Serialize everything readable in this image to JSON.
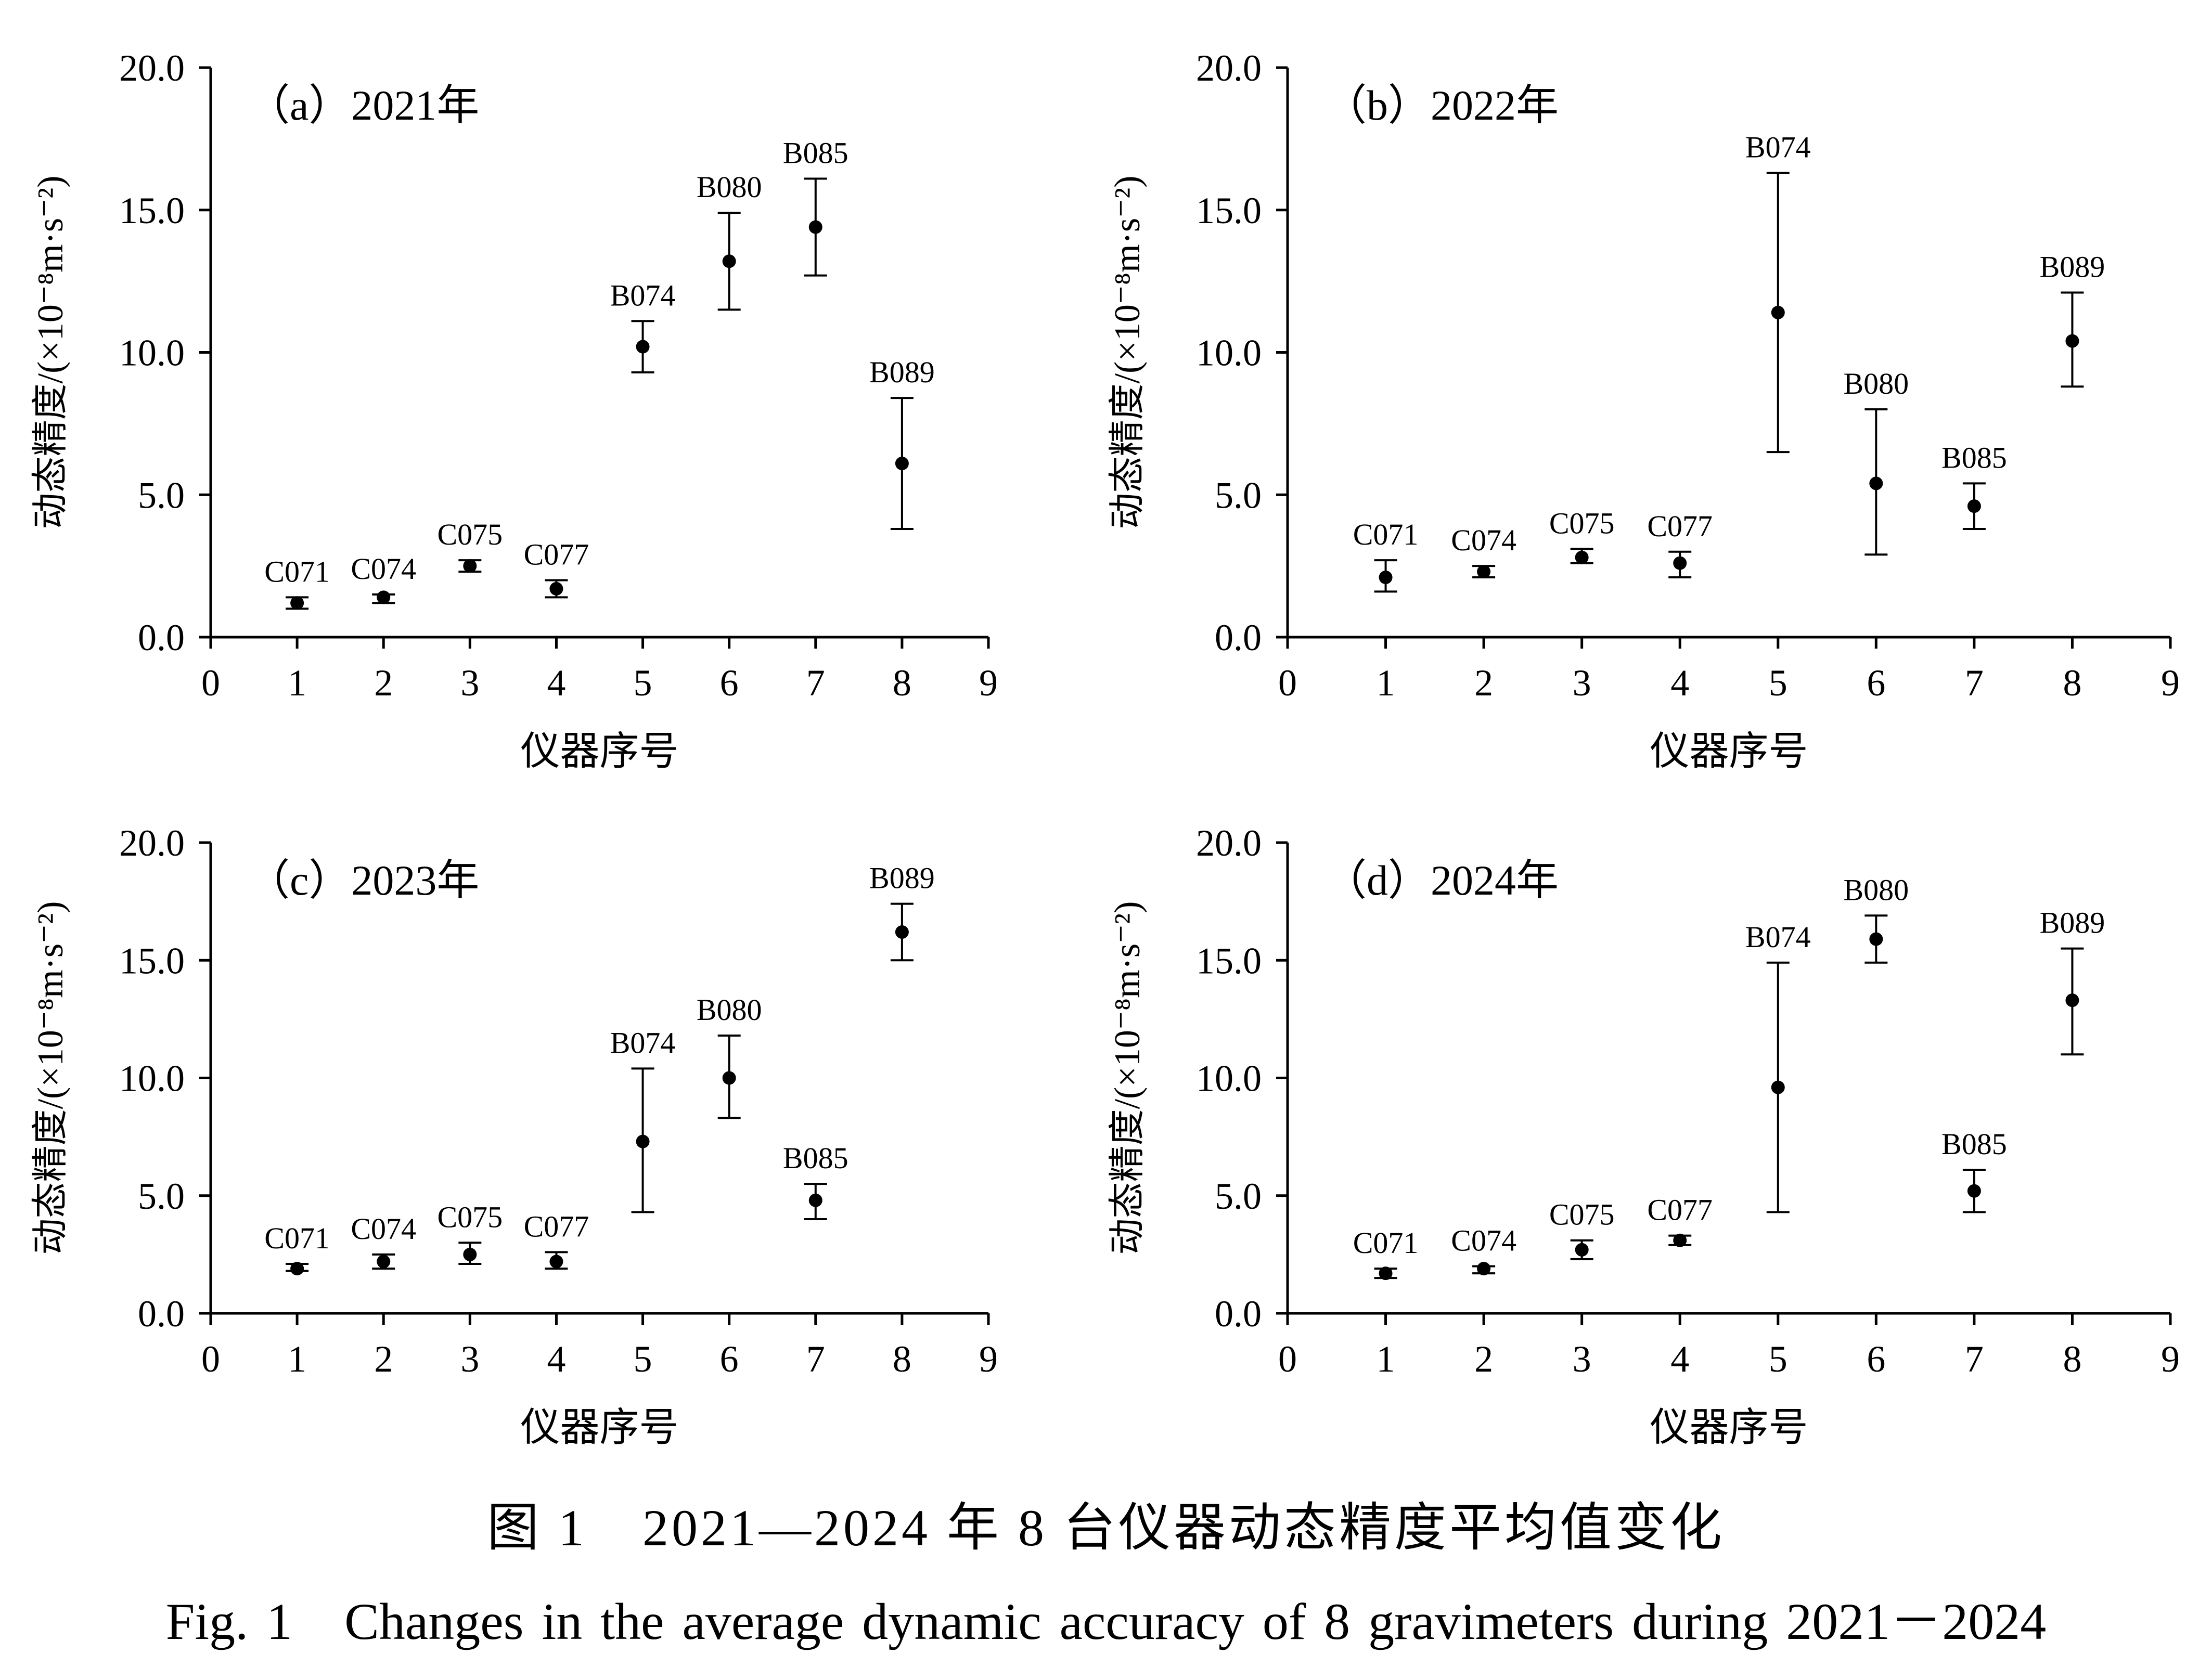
{
  "caption_cn": "图 1　2021—2024 年 8 台仪器动态精度平均值变化",
  "caption_en": "Fig. 1　Changes in the average dynamic accuracy of 8 gravimeters during 2021－2024",
  "chart_data": [
    {
      "type": "scatter",
      "panel_label": "（a）2021年",
      "xlabel": "仪器序号",
      "ylabel": "动态精度/(×10⁻⁸m·s⁻²)",
      "xlim": [
        0,
        9
      ],
      "ylim": [
        0,
        20
      ],
      "xticks": [
        0,
        1,
        2,
        3,
        4,
        5,
        6,
        7,
        8,
        9
      ],
      "yticks": [
        "0.0",
        "5.0",
        "10.0",
        "15.0",
        "20.0"
      ],
      "grid": false,
      "points": [
        {
          "x": 1,
          "y": 1.2,
          "low": 1.0,
          "high": 1.4,
          "label": "C071"
        },
        {
          "x": 2,
          "y": 1.4,
          "low": 1.2,
          "high": 1.5,
          "label": "C074"
        },
        {
          "x": 3,
          "y": 2.5,
          "low": 2.3,
          "high": 2.7,
          "label": "C075"
        },
        {
          "x": 4,
          "y": 1.7,
          "low": 1.4,
          "high": 2.0,
          "label": "C077"
        },
        {
          "x": 5,
          "y": 10.2,
          "low": 9.3,
          "high": 11.1,
          "label": "B074"
        },
        {
          "x": 6,
          "y": 13.2,
          "low": 11.5,
          "high": 14.9,
          "label": "B080"
        },
        {
          "x": 7,
          "y": 14.4,
          "low": 12.7,
          "high": 16.1,
          "label": "B085"
        },
        {
          "x": 8,
          "y": 6.1,
          "low": 3.8,
          "high": 8.4,
          "label": "B089"
        }
      ]
    },
    {
      "type": "scatter",
      "panel_label": "（b）2022年",
      "xlabel": "仪器序号",
      "ylabel": "动态精度/(×10⁻⁸m·s⁻²)",
      "xlim": [
        0,
        9
      ],
      "ylim": [
        0,
        20
      ],
      "xticks": [
        0,
        1,
        2,
        3,
        4,
        5,
        6,
        7,
        8,
        9
      ],
      "yticks": [
        "0.0",
        "5.0",
        "10.0",
        "15.0",
        "20.0"
      ],
      "grid": false,
      "points": [
        {
          "x": 1,
          "y": 2.1,
          "low": 1.6,
          "high": 2.7,
          "label": "C071"
        },
        {
          "x": 2,
          "y": 2.3,
          "low": 2.1,
          "high": 2.5,
          "label": "C074"
        },
        {
          "x": 3,
          "y": 2.8,
          "low": 2.6,
          "high": 3.1,
          "label": "C075"
        },
        {
          "x": 4,
          "y": 2.6,
          "low": 2.1,
          "high": 3.0,
          "label": "C077"
        },
        {
          "x": 5,
          "y": 11.4,
          "low": 6.5,
          "high": 16.3,
          "label": "B074"
        },
        {
          "x": 6,
          "y": 5.4,
          "low": 2.9,
          "high": 8.0,
          "label": "B080"
        },
        {
          "x": 7,
          "y": 4.6,
          "low": 3.8,
          "high": 5.4,
          "label": "B085"
        },
        {
          "x": 8,
          "y": 10.4,
          "low": 8.8,
          "high": 12.1,
          "label": "B089"
        }
      ]
    },
    {
      "type": "scatter",
      "panel_label": "（c）2023年",
      "xlabel": "仪器序号",
      "ylabel": "动态精度/(×10⁻⁸m·s⁻²)",
      "xlim": [
        0,
        9
      ],
      "ylim": [
        0,
        20
      ],
      "xticks": [
        0,
        1,
        2,
        3,
        4,
        5,
        6,
        7,
        8,
        9
      ],
      "yticks": [
        "0.0",
        "5.0",
        "10.0",
        "15.0",
        "20.0"
      ],
      "grid": false,
      "points": [
        {
          "x": 1,
          "y": 1.9,
          "low": 1.8,
          "high": 2.1,
          "label": "C071"
        },
        {
          "x": 2,
          "y": 2.2,
          "low": 1.9,
          "high": 2.5,
          "label": "C074"
        },
        {
          "x": 3,
          "y": 2.5,
          "low": 2.1,
          "high": 3.0,
          "label": "C075"
        },
        {
          "x": 4,
          "y": 2.2,
          "low": 1.9,
          "high": 2.6,
          "label": "C077"
        },
        {
          "x": 5,
          "y": 7.3,
          "low": 4.3,
          "high": 10.4,
          "label": "B074"
        },
        {
          "x": 6,
          "y": 10.0,
          "low": 8.3,
          "high": 11.8,
          "label": "B080"
        },
        {
          "x": 7,
          "y": 4.8,
          "low": 4.0,
          "high": 5.5,
          "label": "B085"
        },
        {
          "x": 8,
          "y": 16.2,
          "low": 15.0,
          "high": 17.4,
          "label": "B089"
        }
      ]
    },
    {
      "type": "scatter",
      "panel_label": "（d）2024年",
      "xlabel": "仪器序号",
      "ylabel": "动态精度/(×10⁻⁸m·s⁻²)",
      "xlim": [
        0,
        9
      ],
      "ylim": [
        0,
        20
      ],
      "xticks": [
        0,
        1,
        2,
        3,
        4,
        5,
        6,
        7,
        8,
        9
      ],
      "yticks": [
        "0.0",
        "5.0",
        "10.0",
        "15.0",
        "20.0"
      ],
      "grid": false,
      "points": [
        {
          "x": 1,
          "y": 1.7,
          "low": 1.5,
          "high": 1.9,
          "label": "C071"
        },
        {
          "x": 2,
          "y": 1.9,
          "low": 1.7,
          "high": 2.0,
          "label": "C074"
        },
        {
          "x": 3,
          "y": 2.7,
          "low": 2.3,
          "high": 3.1,
          "label": "C075"
        },
        {
          "x": 4,
          "y": 3.1,
          "low": 2.9,
          "high": 3.3,
          "label": "C077"
        },
        {
          "x": 5,
          "y": 9.6,
          "low": 4.3,
          "high": 14.9,
          "label": "B074"
        },
        {
          "x": 6,
          "y": 15.9,
          "low": 14.9,
          "high": 16.9,
          "label": "B080"
        },
        {
          "x": 7,
          "y": 5.2,
          "low": 4.3,
          "high": 6.1,
          "label": "B085"
        },
        {
          "x": 8,
          "y": 13.3,
          "low": 11.0,
          "high": 15.5,
          "label": "B089"
        }
      ]
    }
  ]
}
